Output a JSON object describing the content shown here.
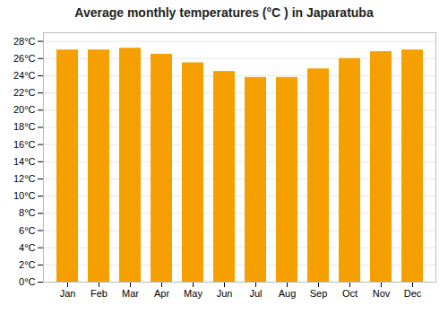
{
  "chart_data": {
    "type": "bar",
    "title": "Average monthly temperatures (°C ) in Japaratuba",
    "categories": [
      "Jan",
      "Feb",
      "Mar",
      "Apr",
      "May",
      "Jun",
      "Jul",
      "Aug",
      "Sep",
      "Oct",
      "Nov",
      "Dec"
    ],
    "values": [
      27.0,
      27.0,
      27.2,
      26.5,
      25.5,
      24.5,
      23.8,
      23.8,
      24.8,
      26.0,
      26.8,
      27.0
    ],
    "color": "#F5A000",
    "ylim": [
      0,
      29
    ],
    "yticks": [
      {
        "value": 0,
        "label": "0°C"
      },
      {
        "value": 2,
        "label": "2°C"
      },
      {
        "value": 4,
        "label": "4°C"
      },
      {
        "value": 6,
        "label": "6°C"
      },
      {
        "value": 8,
        "label": "8°C"
      },
      {
        "value": 10,
        "label": "10°C"
      },
      {
        "value": 12,
        "label": "12°C"
      },
      {
        "value": 14,
        "label": "14°C"
      },
      {
        "value": 16,
        "label": "16°C"
      },
      {
        "value": 18,
        "label": "18°C"
      },
      {
        "value": 20,
        "label": "20°C"
      },
      {
        "value": 22,
        "label": "22°C"
      },
      {
        "value": 24,
        "label": "24°C"
      },
      {
        "value": 26,
        "label": "26°C"
      },
      {
        "value": 28,
        "label": "28°C"
      }
    ],
    "grid": true
  }
}
